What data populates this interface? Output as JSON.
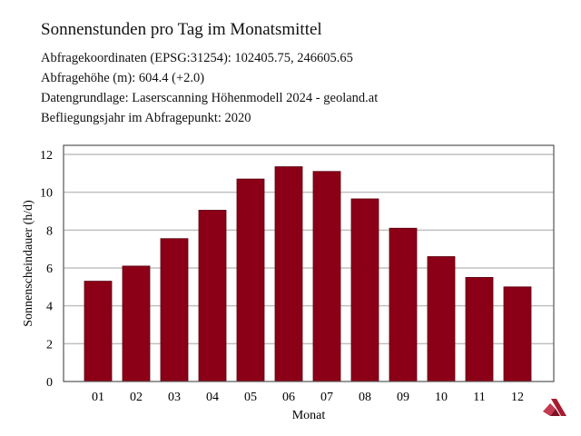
{
  "header": {
    "title": "Sonnenstunden pro Tag im Monatsmittel",
    "lines": [
      "Abfragekoordinaten (EPSG:31254): 102405.75, 246605.65",
      "Abfragehöhe (m): 604.4 (+2.0)",
      "Datengrundlage: Laserscanning Höhenmodell 2024 - geoland.at",
      "Befliegungsjahr im Abfragepunkt: 2020"
    ]
  },
  "logo": {
    "icon": "brand-logo-icon",
    "color": "#a51c30"
  },
  "colors": {
    "bar": "#8b0016",
    "bar_edge": "#5a0010",
    "grid": "#c0c0c0",
    "axis": "#555555"
  },
  "chart_data": {
    "type": "bar",
    "title": "Sonnenstunden pro Tag im Monatsmittel",
    "xlabel": "Monat",
    "ylabel": "Sonnenscheindauer (h/d)",
    "categories": [
      "01",
      "02",
      "03",
      "04",
      "05",
      "06",
      "07",
      "08",
      "09",
      "10",
      "11",
      "12"
    ],
    "values": [
      5.3,
      6.1,
      7.55,
      9.05,
      10.7,
      11.35,
      11.1,
      9.65,
      8.1,
      6.6,
      5.5,
      5.0
    ],
    "ylim": [
      0,
      12.5
    ],
    "yticks": [
      0,
      2,
      4,
      6,
      8,
      10,
      12
    ],
    "grid": true,
    "legend": null
  }
}
